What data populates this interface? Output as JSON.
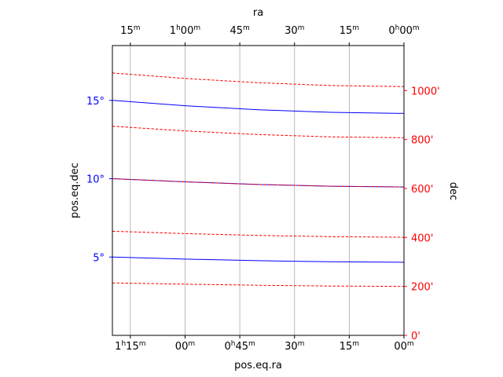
{
  "chart_data": {
    "type": "line",
    "title": "",
    "xlabel": "pos.eq.ra",
    "ylabel": "pos.eq.dec",
    "top_xlabel": "ra",
    "right_ylabel": "dec",
    "xlim": [
      1.333,
      1.0
    ],
    "ylim": [
      0.0,
      18.5
    ],
    "grid": "vertical-lines",
    "bottom_ticks": [
      {
        "x": 1.3125,
        "h": "1",
        "m": "15"
      },
      {
        "x": 1.25,
        "h": "",
        "m": "00"
      },
      {
        "x": 1.1875,
        "h": "0",
        "m": "45"
      },
      {
        "x": 1.125,
        "h": "",
        "m": "30"
      },
      {
        "x": 1.0625,
        "h": "",
        "m": "15"
      },
      {
        "x": 1.0,
        "h": "",
        "m": "00"
      }
    ],
    "top_ticks": [
      {
        "x": 1.3125,
        "h": "",
        "m": "15"
      },
      {
        "x": 1.25,
        "h": "1",
        "m": "00"
      },
      {
        "x": 1.1875,
        "h": "",
        "m": "45"
      },
      {
        "x": 1.125,
        "h": "",
        "m": "30"
      },
      {
        "x": 1.0625,
        "h": "",
        "m": "15"
      },
      {
        "x": 1.0,
        "h": "0",
        "m": "00"
      }
    ],
    "left_ticks": [
      {
        "y": 5,
        "label": "5°"
      },
      {
        "y": 10,
        "label": "10°"
      },
      {
        "y": 15,
        "label": "15°"
      }
    ],
    "right_ticks": [
      {
        "y": 0,
        "label": "0'"
      },
      {
        "y": 3.125,
        "label": "200'"
      },
      {
        "y": 6.25,
        "label": "400'"
      },
      {
        "y": 9.375,
        "label": "600'"
      },
      {
        "y": 12.5,
        "label": "800'"
      },
      {
        "y": 15.625,
        "label": "1000'"
      }
    ],
    "series": [
      {
        "style": "solid",
        "color": "#0000ff",
        "x": [
          1.333,
          1.25,
          1.1667,
          1.0833,
          1.0
        ],
        "y": [
          15.0,
          14.66,
          14.4,
          14.24,
          14.17
        ]
      },
      {
        "style": "solid",
        "color": "#0000ff",
        "x": [
          1.333,
          1.25,
          1.1667,
          1.0833,
          1.0
        ],
        "y": [
          10.0,
          9.8,
          9.63,
          9.52,
          9.47
        ]
      },
      {
        "style": "solid",
        "color": "#0000ff",
        "x": [
          1.333,
          1.25,
          1.1667,
          1.0833,
          1.0
        ],
        "y": [
          5.0,
          4.87,
          4.77,
          4.7,
          4.67
        ]
      },
      {
        "style": "dashed",
        "color": "#ff0000",
        "x": [
          1.333,
          1.25,
          1.1667,
          1.0833,
          1.0
        ],
        "y": [
          16.75,
          16.4,
          16.13,
          15.95,
          15.88
        ]
      },
      {
        "style": "dashed",
        "color": "#ff0000",
        "x": [
          1.333,
          1.25,
          1.1667,
          1.0833,
          1.0
        ],
        "y": [
          13.35,
          13.05,
          12.82,
          12.67,
          12.62
        ]
      },
      {
        "style": "dashed",
        "color": "#ff0000",
        "x": [
          1.333,
          1.25,
          1.1667,
          1.0833,
          1.0
        ],
        "y": [
          10.0,
          9.8,
          9.63,
          9.52,
          9.47
        ]
      },
      {
        "style": "dashed",
        "color": "#ff0000",
        "x": [
          1.333,
          1.25,
          1.1667,
          1.0833,
          1.0
        ],
        "y": [
          6.65,
          6.5,
          6.38,
          6.3,
          6.26
        ]
      },
      {
        "style": "dashed",
        "color": "#ff0000",
        "x": [
          1.333,
          1.25,
          1.1667,
          1.0833,
          1.0
        ],
        "y": [
          3.35,
          3.27,
          3.2,
          3.15,
          3.13
        ]
      }
    ],
    "colors": {
      "left_axis": "#0000ff",
      "right_axis": "#ff0000",
      "grid": "#aaaaaa",
      "frame": "#000000"
    }
  }
}
